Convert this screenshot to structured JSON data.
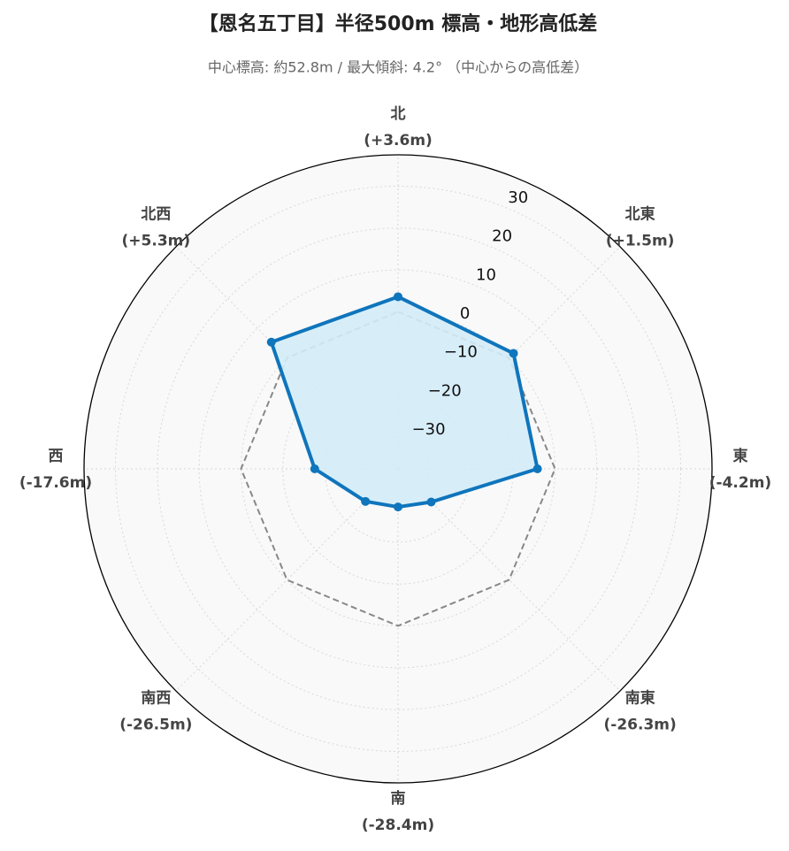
{
  "chart_data": {
    "type": "radar",
    "title": "【恩名五丁目】半径500m 標高・地形高低差",
    "subtitle": "中心標高: 約52.8m / 最大傾斜: 4.2° （中心からの高低差）",
    "categories": [
      "北",
      "北東",
      "東",
      "南東",
      "南",
      "南西",
      "西",
      "北西"
    ],
    "values": [
      3.6,
      1.5,
      -4.2,
      -26.3,
      -28.4,
      -26.5,
      -17.6,
      5.3
    ],
    "value_labels": [
      "(+3.6m)",
      "(+1.5m)",
      "(-4.2m)",
      "(-26.3m)",
      "(-28.4m)",
      "(-26.5m)",
      "(-17.6m)",
      "(+5.3m)"
    ],
    "color": "#0f75bc",
    "fill_color": "#d3ecf8",
    "rlim": [
      -37.5,
      37.5
    ],
    "rticks": [
      {
        "value": -30,
        "label": "−30"
      },
      {
        "value": -20,
        "label": "−20"
      },
      {
        "value": -10,
        "label": "−10"
      },
      0,
      10,
      20,
      30
    ],
    "reference_line": {
      "value": 0,
      "style": "dashed",
      "color": "#888888"
    },
    "grid": true
  }
}
